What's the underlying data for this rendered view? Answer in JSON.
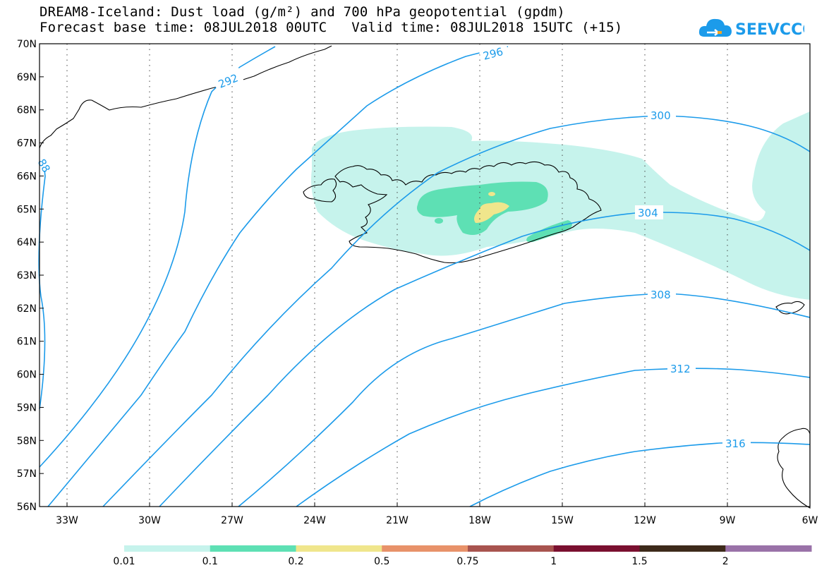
{
  "title": {
    "line1": "DREAM8-Iceland: Dust load (g/m²) and 700 hPa geopotential (gpdm)",
    "line2": "Forecast base time: 08JUL2018 00UTC   Valid time: 08JUL2018 15UTC (+15)"
  },
  "logo": {
    "text": "SEEVCCC",
    "icon": "cloud-icon"
  },
  "map": {
    "lat_labels": [
      "70N",
      "69N",
      "68N",
      "67N",
      "66N",
      "65N",
      "64N",
      "63N",
      "62N",
      "61N",
      "60N",
      "59N",
      "58N",
      "57N",
      "56N"
    ],
    "lon_labels": [
      "33W",
      "30W",
      "27W",
      "24W",
      "21W",
      "18W",
      "15W",
      "12W",
      "9W",
      "6W"
    ],
    "contour_labels": [
      "292",
      "296",
      "300",
      "304",
      "308",
      "312",
      "316",
      "88"
    ],
    "colors": {
      "contour": "#1c9bea",
      "dust_low": "#c6f3ec",
      "dust_mid": "#5ee0b4",
      "dust_high": "#f0e68c"
    }
  },
  "colorbar": {
    "labels": [
      "0.01",
      "0.1",
      "0.2",
      "0.5",
      "0.75",
      "1",
      "1.5",
      "2"
    ],
    "colors": [
      "#c6f3ec",
      "#5ee0b4",
      "#f0e68c",
      "#e8926a",
      "#a8544f",
      "#7a1030",
      "#3d2a1a",
      "#9a72a8"
    ]
  }
}
